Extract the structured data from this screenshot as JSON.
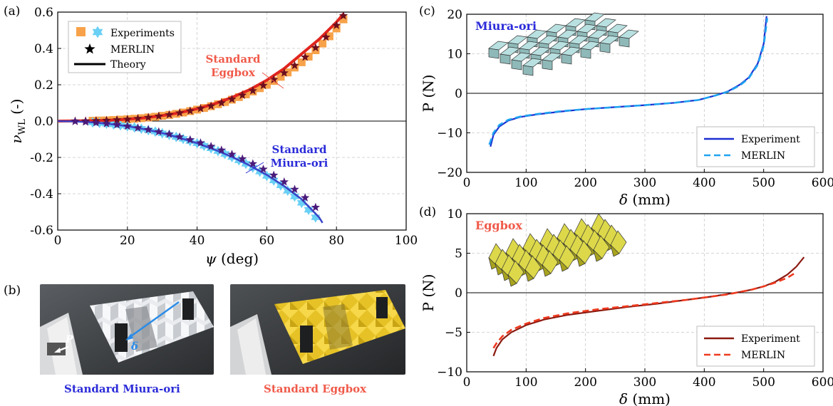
{
  "figure": {
    "panel_a_letter": "(a)",
    "panel_b_letter": "(b)",
    "panel_c_letter": "(c)",
    "panel_d_letter": "(d)",
    "photo_left_caption": "Standard Miura-ori",
    "photo_right_caption": "Standard Eggbox",
    "photo_left_labels": {
      "force": "P",
      "disp": "δ"
    },
    "colors": {
      "miura": "#2b2bd9",
      "eggbox": "#f05a4a",
      "square_marker": "#f7a24a",
      "hex_marker": "#6ad0f5",
      "theory_red": "#e0251e",
      "theory_blue": "#3a44c8",
      "exp_blue": "#1a2fd1",
      "merlin_blue": "#1fa3f0",
      "exp_red": "#8b1a10",
      "merlin_red": "#ee3a1f",
      "miura_model": "#b9e0e0",
      "eggbox_model": "#dcd84a"
    }
  },
  "chart_data": [
    {
      "type": "scatter",
      "xlabel": "ψ (deg)",
      "ylabel": "ν_WL (-)",
      "xlim": [
        0,
        100
      ],
      "ylim": [
        -0.6,
        0.6
      ],
      "xticks": [
        "0",
        "20",
        "40",
        "60",
        "80",
        "100"
      ],
      "yticks": [
        "0.6",
        "0.4",
        "0.2",
        "0.0",
        "-0.2",
        "-0.4",
        "-0.6"
      ],
      "grid": true,
      "legend": {
        "position": "top-left",
        "entries": [
          "Experiments",
          "MERLIN",
          "Theory"
        ]
      },
      "annotations": [
        {
          "text_lines": [
            "Standard",
            "Eggbox"
          ],
          "color": "#f05a4a"
        },
        {
          "text_lines": [
            "Standard",
            "Miura-ori"
          ],
          "color": "#2b2bd9"
        }
      ],
      "series": [
        {
          "name": "Eggbox theory",
          "kind": "line",
          "x": [
            0,
            5,
            10,
            15,
            20,
            25,
            30,
            35,
            40,
            45,
            50,
            55,
            60,
            65,
            70,
            75,
            80,
            82
          ],
          "y": [
            0.0,
            0.001,
            0.002,
            0.005,
            0.01,
            0.018,
            0.03,
            0.046,
            0.068,
            0.095,
            0.13,
            0.172,
            0.225,
            0.29,
            0.37,
            0.45,
            0.545,
            0.59
          ]
        },
        {
          "name": "Eggbox experiments",
          "kind": "square",
          "x": [
            10,
            12,
            14,
            16,
            18,
            20,
            22,
            24,
            26,
            28,
            30,
            32,
            34,
            36,
            38,
            40,
            42,
            44,
            46,
            48,
            50,
            52,
            54,
            56,
            58,
            60,
            62,
            64,
            66,
            68,
            70,
            72,
            74,
            76,
            78,
            80,
            82
          ],
          "y": [
            0.002,
            0.003,
            0.004,
            0.006,
            0.008,
            0.01,
            0.013,
            0.016,
            0.02,
            0.024,
            0.029,
            0.034,
            0.04,
            0.047,
            0.055,
            0.063,
            0.072,
            0.082,
            0.093,
            0.105,
            0.118,
            0.132,
            0.147,
            0.163,
            0.181,
            0.2,
            0.221,
            0.244,
            0.268,
            0.295,
            0.324,
            0.355,
            0.39,
            0.427,
            0.467,
            0.51,
            0.56
          ]
        },
        {
          "name": "Eggbox MERLIN",
          "kind": "star",
          "x": [
            5,
            8,
            11,
            14,
            17,
            20,
            23,
            26,
            29,
            32,
            35,
            38,
            41,
            44,
            47,
            50,
            53,
            56,
            59,
            62,
            65,
            68,
            71,
            74,
            77,
            80,
            82
          ],
          "y": [
            0.0,
            0.001,
            0.002,
            0.004,
            0.007,
            0.01,
            0.014,
            0.02,
            0.027,
            0.035,
            0.045,
            0.056,
            0.069,
            0.083,
            0.1,
            0.12,
            0.142,
            0.167,
            0.196,
            0.228,
            0.265,
            0.306,
            0.352,
            0.404,
            0.462,
            0.527,
            0.58
          ]
        },
        {
          "name": "Miura theory",
          "kind": "line",
          "x": [
            0,
            5,
            10,
            15,
            20,
            25,
            30,
            35,
            40,
            45,
            50,
            55,
            60,
            65,
            70,
            75,
            76
          ],
          "y": [
            0.0,
            -0.002,
            -0.007,
            -0.016,
            -0.028,
            -0.045,
            -0.066,
            -0.092,
            -0.122,
            -0.157,
            -0.197,
            -0.243,
            -0.296,
            -0.358,
            -0.43,
            -0.53,
            -0.56
          ]
        },
        {
          "name": "Miura experiments",
          "kind": "hex",
          "x": [
            10,
            12,
            14,
            16,
            18,
            20,
            22,
            24,
            26,
            28,
            30,
            32,
            34,
            36,
            38,
            40,
            42,
            44,
            46,
            48,
            50,
            52,
            54,
            56,
            58,
            60,
            62,
            64,
            66,
            68,
            70,
            72,
            74
          ],
          "y": [
            -0.007,
            -0.01,
            -0.014,
            -0.018,
            -0.023,
            -0.029,
            -0.035,
            -0.042,
            -0.05,
            -0.058,
            -0.067,
            -0.076,
            -0.087,
            -0.098,
            -0.11,
            -0.122,
            -0.136,
            -0.15,
            -0.165,
            -0.181,
            -0.198,
            -0.216,
            -0.235,
            -0.256,
            -0.278,
            -0.302,
            -0.327,
            -0.354,
            -0.383,
            -0.415,
            -0.45,
            -0.488,
            -0.53
          ]
        },
        {
          "name": "Miura MERLIN",
          "kind": "star",
          "x": [
            5,
            8,
            11,
            14,
            17,
            20,
            23,
            26,
            29,
            32,
            35,
            38,
            41,
            44,
            47,
            50,
            53,
            56,
            59,
            62,
            65,
            68,
            71,
            74
          ],
          "y": [
            -0.002,
            -0.005,
            -0.009,
            -0.014,
            -0.02,
            -0.028,
            -0.037,
            -0.047,
            -0.059,
            -0.072,
            -0.087,
            -0.103,
            -0.12,
            -0.139,
            -0.16,
            -0.183,
            -0.208,
            -0.235,
            -0.265,
            -0.298,
            -0.335,
            -0.376,
            -0.422,
            -0.475
          ]
        }
      ]
    },
    {
      "type": "line",
      "title": "Miura-ori",
      "xlabel": "δ (mm)",
      "ylabel": "P (N)",
      "xlim": [
        0,
        600
      ],
      "ylim": [
        -20,
        20
      ],
      "xticks": [
        "0",
        "100",
        "200",
        "300",
        "400",
        "500",
        "600"
      ],
      "yticks": [
        "20",
        "10",
        "0",
        "−10",
        "−20"
      ],
      "grid": true,
      "legend": {
        "position": "bottom-right",
        "entries": [
          "Experiment",
          "MERLIN"
        ]
      },
      "series": [
        {
          "name": "Experiment",
          "x": [
            40,
            45,
            55,
            70,
            90,
            120,
            160,
            200,
            250,
            300,
            350,
            390,
            420,
            440,
            460,
            475,
            490,
            500,
            505
          ],
          "y": [
            -13.5,
            -10.5,
            -8.4,
            -6.9,
            -6.0,
            -5.3,
            -4.6,
            -4.0,
            -3.5,
            -3.0,
            -2.4,
            -1.7,
            -0.5,
            0.5,
            2.2,
            4.0,
            7.5,
            12.5,
            19.5
          ]
        },
        {
          "name": "MERLIN",
          "x": [
            38,
            45,
            55,
            70,
            90,
            120,
            160,
            200,
            250,
            300,
            350,
            390,
            420,
            440,
            460,
            475,
            490,
            500,
            506
          ],
          "y": [
            -13.0,
            -10.0,
            -8.0,
            -6.7,
            -5.9,
            -5.2,
            -4.5,
            -4.0,
            -3.5,
            -3.0,
            -2.4,
            -1.7,
            -0.5,
            0.4,
            2.0,
            3.8,
            7.2,
            12.0,
            19.0
          ]
        }
      ]
    },
    {
      "type": "line",
      "title": "Eggbox",
      "xlabel": "δ (mm)",
      "ylabel": "P (N)",
      "xlim": [
        0,
        600
      ],
      "ylim": [
        -10,
        10
      ],
      "xticks": [
        "0",
        "100",
        "200",
        "300",
        "400",
        "500",
        "600"
      ],
      "yticks": [
        "10",
        "5",
        "0",
        "−5",
        "−10"
      ],
      "grid": true,
      "legend": {
        "position": "bottom-right",
        "entries": [
          "Experiment",
          "MERLIN"
        ]
      },
      "series": [
        {
          "name": "Experiment",
          "x": [
            45,
            50,
            60,
            75,
            100,
            130,
            170,
            220,
            270,
            320,
            370,
            410,
            440,
            460,
            480,
            500,
            520,
            540,
            555,
            568
          ],
          "y": [
            -8.0,
            -7.0,
            -5.9,
            -5.0,
            -4.1,
            -3.4,
            -2.8,
            -2.3,
            -1.8,
            -1.4,
            -0.9,
            -0.5,
            -0.15,
            0.1,
            0.4,
            0.8,
            1.4,
            2.3,
            3.3,
            4.5
          ]
        },
        {
          "name": "MERLIN",
          "x": [
            45,
            50,
            60,
            75,
            100,
            130,
            170,
            220,
            270,
            320,
            370,
            410,
            440,
            460,
            480,
            500,
            520,
            540,
            553
          ],
          "y": [
            -7.0,
            -6.4,
            -5.5,
            -4.7,
            -3.9,
            -3.2,
            -2.6,
            -2.1,
            -1.7,
            -1.3,
            -0.9,
            -0.5,
            -0.2,
            0.1,
            0.4,
            0.8,
            1.3,
            1.9,
            2.5
          ]
        }
      ]
    }
  ]
}
